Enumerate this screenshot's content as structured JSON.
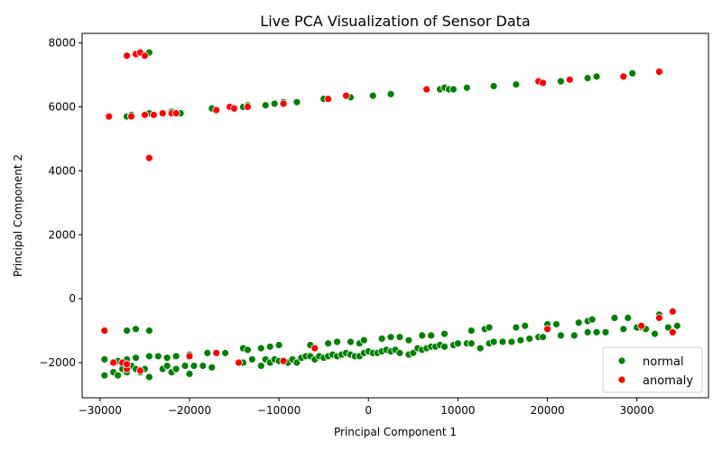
{
  "chart_data": {
    "type": "scatter",
    "title": "Live PCA Visualization of Sensor Data",
    "xlabel": "Principal Component 1",
    "ylabel": "Principal Component 2",
    "xlim": [
      -32000,
      38000
    ],
    "ylim": [
      -3100,
      8300
    ],
    "xticks": [
      -30000,
      -20000,
      -10000,
      0,
      10000,
      20000,
      30000
    ],
    "xtick_labels": [
      "−30000",
      "−20000",
      "−10000",
      "0",
      "10000",
      "20000",
      "30000"
    ],
    "yticks": [
      -2000,
      0,
      2000,
      4000,
      6000,
      8000
    ],
    "ytick_labels": [
      "−2000",
      "0",
      "2000",
      "4000",
      "6000",
      "8000"
    ],
    "grid": false,
    "legend_position": "lower-right",
    "series": [
      {
        "name": "normal",
        "color": "#008000",
        "points": [
          [
            -27000,
            5700
          ],
          [
            -26500,
            5750
          ],
          [
            -24500,
            5800
          ],
          [
            -22000,
            5850
          ],
          [
            -21000,
            5800
          ],
          [
            -17500,
            5950
          ],
          [
            -14000,
            6000
          ],
          [
            -13500,
            6050
          ],
          [
            -11500,
            6050
          ],
          [
            -10500,
            6100
          ],
          [
            -9500,
            6150
          ],
          [
            -8000,
            6150
          ],
          [
            -5000,
            6250
          ],
          [
            -2000,
            6300
          ],
          [
            500,
            6350
          ],
          [
            2500,
            6400
          ],
          [
            8000,
            6550
          ],
          [
            8500,
            6600
          ],
          [
            9000,
            6550
          ],
          [
            9500,
            6550
          ],
          [
            11000,
            6600
          ],
          [
            14000,
            6650
          ],
          [
            16500,
            6700
          ],
          [
            21500,
            6800
          ],
          [
            24500,
            6900
          ],
          [
            25500,
            6950
          ],
          [
            29500,
            7050
          ],
          [
            -24500,
            7700
          ],
          [
            -29500,
            -2400
          ],
          [
            -28500,
            -2300
          ],
          [
            -28000,
            -2400
          ],
          [
            -27500,
            -2200
          ],
          [
            -27000,
            -2300
          ],
          [
            -26500,
            -2100
          ],
          [
            -26000,
            -2200
          ],
          [
            -25500,
            -2300
          ],
          [
            -25000,
            -2200
          ],
          [
            -24500,
            -2450
          ],
          [
            -23000,
            -2200
          ],
          [
            -22500,
            -2100
          ],
          [
            -22000,
            -2300
          ],
          [
            -21500,
            -2200
          ],
          [
            -20500,
            -2100
          ],
          [
            -20000,
            -2350
          ],
          [
            -19500,
            -2100
          ],
          [
            -18500,
            -2100
          ],
          [
            -17500,
            -2150
          ],
          [
            -29500,
            -1900
          ],
          [
            -28000,
            -1950
          ],
          [
            -27000,
            -1900
          ],
          [
            -26000,
            -1850
          ],
          [
            -24500,
            -1800
          ],
          [
            -23500,
            -1800
          ],
          [
            -22500,
            -1850
          ],
          [
            -21500,
            -1800
          ],
          [
            -20000,
            -1750
          ],
          [
            -18000,
            -1700
          ],
          [
            -16000,
            -1700
          ],
          [
            -14500,
            -2000
          ],
          [
            -14000,
            -2000
          ],
          [
            -13000,
            -1900
          ],
          [
            -12000,
            -2100
          ],
          [
            -11500,
            -1900
          ],
          [
            -11000,
            -2000
          ],
          [
            -10500,
            -1900
          ],
          [
            -10000,
            -1950
          ],
          [
            -9500,
            -1950
          ],
          [
            -9000,
            -2000
          ],
          [
            -8500,
            -1900
          ],
          [
            -8000,
            -2000
          ],
          [
            -7500,
            -1850
          ],
          [
            -7000,
            -1800
          ],
          [
            -6500,
            -1800
          ],
          [
            -6000,
            -1900
          ],
          [
            -5500,
            -1800
          ],
          [
            -5000,
            -1850
          ],
          [
            -4500,
            -1800
          ],
          [
            -4000,
            -1750
          ],
          [
            -3500,
            -1800
          ],
          [
            -3000,
            -1750
          ],
          [
            -2500,
            -1700
          ],
          [
            -2000,
            -1750
          ],
          [
            -1500,
            -1800
          ],
          [
            -1000,
            -1800
          ],
          [
            -500,
            -1700
          ],
          [
            0,
            -1650
          ],
          [
            500,
            -1700
          ],
          [
            1000,
            -1700
          ],
          [
            1500,
            -1650
          ],
          [
            2000,
            -1600
          ],
          [
            2500,
            -1650
          ],
          [
            3000,
            -1600
          ],
          [
            3500,
            -1700
          ],
          [
            4500,
            -1750
          ],
          [
            5000,
            -1700
          ],
          [
            5500,
            -1550
          ],
          [
            6000,
            -1600
          ],
          [
            6500,
            -1550
          ],
          [
            7000,
            -1500
          ],
          [
            7500,
            -1500
          ],
          [
            8000,
            -1450
          ],
          [
            8500,
            -1500
          ],
          [
            9500,
            -1450
          ],
          [
            10000,
            -1400
          ],
          [
            11000,
            -1400
          ],
          [
            11500,
            -1400
          ],
          [
            12500,
            -1550
          ],
          [
            13500,
            -1400
          ],
          [
            14000,
            -1350
          ],
          [
            15000,
            -1350
          ],
          [
            16000,
            -1350
          ],
          [
            17000,
            -1300
          ],
          [
            18000,
            -1250
          ],
          [
            19000,
            -1200
          ],
          [
            19500,
            -1200
          ],
          [
            -27000,
            -1000
          ],
          [
            -26000,
            -950
          ],
          [
            -24500,
            -1000
          ],
          [
            -14000,
            -1550
          ],
          [
            -13500,
            -1600
          ],
          [
            -12000,
            -1550
          ],
          [
            -11000,
            -1500
          ],
          [
            -10000,
            -1450
          ],
          [
            -6500,
            -1450
          ],
          [
            -4500,
            -1400
          ],
          [
            -3500,
            -1350
          ],
          [
            -2000,
            -1350
          ],
          [
            -1000,
            -1400
          ],
          [
            -500,
            -1300
          ],
          [
            1500,
            -1250
          ],
          [
            2500,
            -1200
          ],
          [
            3500,
            -1200
          ],
          [
            4500,
            -1300
          ],
          [
            6000,
            -1150
          ],
          [
            7000,
            -1150
          ],
          [
            8500,
            -1100
          ],
          [
            11500,
            -1000
          ],
          [
            13000,
            -950
          ],
          [
            13500,
            -900
          ],
          [
            16500,
            -900
          ],
          [
            17500,
            -850
          ],
          [
            20000,
            -800
          ],
          [
            21000,
            -800
          ],
          [
            23500,
            -750
          ],
          [
            24500,
            -700
          ],
          [
            25000,
            -650
          ],
          [
            27500,
            -600
          ],
          [
            29000,
            -600
          ],
          [
            30500,
            -900
          ],
          [
            32500,
            -500
          ],
          [
            34500,
            -850
          ],
          [
            21500,
            -1150
          ],
          [
            23000,
            -1150
          ],
          [
            24500,
            -1050
          ],
          [
            25500,
            -1050
          ],
          [
            26500,
            -1050
          ],
          [
            28500,
            -950
          ],
          [
            30000,
            -900
          ],
          [
            31000,
            -950
          ],
          [
            32000,
            -1100
          ],
          [
            33500,
            -900
          ]
        ]
      },
      {
        "name": "anomaly",
        "color": "#ff0000",
        "points": [
          [
            -27000,
            7600
          ],
          [
            -26000,
            7650
          ],
          [
            -25500,
            7700
          ],
          [
            -25000,
            7600
          ],
          [
            -29000,
            5700
          ],
          [
            -26500,
            5700
          ],
          [
            -25000,
            5750
          ],
          [
            -24000,
            5750
          ],
          [
            -23000,
            5800
          ],
          [
            -22000,
            5800
          ],
          [
            -21500,
            5800
          ],
          [
            -17000,
            5900
          ],
          [
            -15500,
            6000
          ],
          [
            -15000,
            5950
          ],
          [
            -13500,
            6000
          ],
          [
            -9500,
            6100
          ],
          [
            -4500,
            6250
          ],
          [
            -2500,
            6350
          ],
          [
            6500,
            6550
          ],
          [
            19000,
            6800
          ],
          [
            19500,
            6750
          ],
          [
            22500,
            6850
          ],
          [
            28500,
            6950
          ],
          [
            32500,
            7100
          ],
          [
            -24500,
            4400
          ],
          [
            -29500,
            -1000
          ],
          [
            -28500,
            -2000
          ],
          [
            -27500,
            -2000
          ],
          [
            -27000,
            -2200
          ],
          [
            -27000,
            -2050
          ],
          [
            -25500,
            -2250
          ],
          [
            -20000,
            -1800
          ],
          [
            -17000,
            -1700
          ],
          [
            -14500,
            -2000
          ],
          [
            -9500,
            -1950
          ],
          [
            -6000,
            -1550
          ],
          [
            20000,
            -950
          ],
          [
            30500,
            -850
          ],
          [
            32500,
            -600
          ],
          [
            34000,
            -400
          ],
          [
            34000,
            -1050
          ]
        ]
      }
    ]
  }
}
